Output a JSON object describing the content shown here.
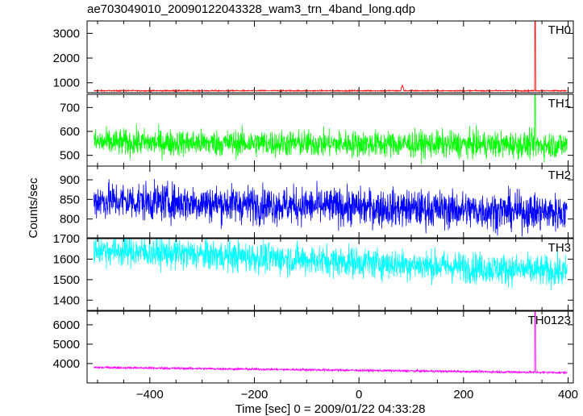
{
  "chart_data": {
    "type": "line",
    "title": "ae703049010_20090122043328_wam3_trn_4band_long.qdp",
    "xlabel": "Time [sec] 0 = 2009/01/22 04:33:28",
    "ylabel": "Counts/sec",
    "xlim": [
      -520,
      410
    ],
    "xticks": [
      -400,
      -200,
      0,
      200,
      400
    ],
    "grid": false,
    "panels": [
      {
        "name": "TH0",
        "color": "#ff0000",
        "ylim": [
          600,
          3500
        ],
        "yticks": [
          1000,
          2000,
          3000
        ],
        "baseline": 680,
        "noise": 12,
        "trend": 0,
        "x_range": [
          -507,
          398
        ],
        "spikes": [
          {
            "x": 83,
            "y": 900
          },
          {
            "x": 337,
            "y": 3500
          }
        ]
      },
      {
        "name": "TH1",
        "color": "#00ff00",
        "ylim": [
          455,
          755
        ],
        "yticks": [
          500,
          600,
          700
        ],
        "baseline": 548,
        "noise": 28,
        "trend": -0.012,
        "x_range": [
          -507,
          398
        ],
        "spikes": [
          {
            "x": 337,
            "y": 755
          }
        ]
      },
      {
        "name": "TH2",
        "color": "#0000ff",
        "ylim": [
          752,
          935
        ],
        "yticks": [
          800,
          850,
          900
        ],
        "baseline": 830,
        "noise": 24,
        "trend": -0.035,
        "x_range": [
          -507,
          398
        ],
        "spikes": []
      },
      {
        "name": "TH3",
        "color": "#00ffff",
        "ylim": [
          1350,
          1700
        ],
        "yticks": [
          1400,
          1500,
          1600,
          1700
        ],
        "baseline": 1585,
        "noise": 38,
        "trend": -0.12,
        "x_range": [
          -507,
          398
        ],
        "spikes": []
      },
      {
        "name": "TH0123",
        "color": "#ff00ff",
        "ylim": [
          3000,
          6700
        ],
        "yticks": [
          4000,
          5000,
          6000
        ],
        "baseline": 3650,
        "noise": 30,
        "trend": -0.3,
        "x_range": [
          -507,
          398
        ],
        "spikes": [
          {
            "x": 337,
            "y": 6700
          }
        ]
      }
    ]
  }
}
